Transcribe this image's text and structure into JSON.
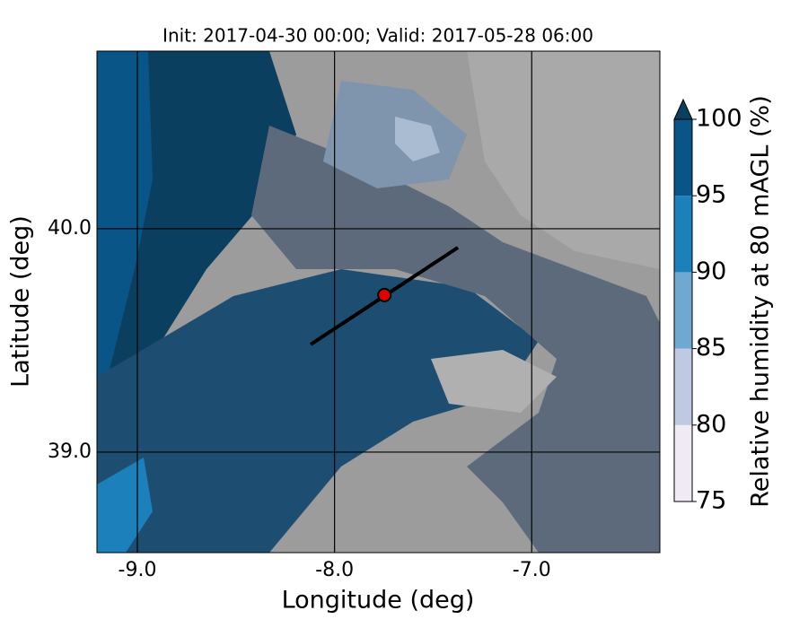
{
  "chart_data": {
    "type": "map",
    "title": "Init: 2017-04-30 00:00; Valid: 2017-05-28 06:00",
    "x_label": "Longitude (deg)",
    "y_label": "Latitude (deg)",
    "xlim": [
      -9.205,
      -6.35
    ],
    "ylim": [
      38.55,
      40.795
    ],
    "xticks": [
      {
        "value": -9,
        "label": "-9.0"
      },
      {
        "value": -8,
        "label": "-8.0"
      },
      {
        "value": -7,
        "label": "-7.0"
      }
    ],
    "yticks": [
      {
        "value": 39,
        "label": "39.0"
      },
      {
        "value": 40,
        "label": "40.0"
      }
    ],
    "grid": true,
    "colorbar": {
      "label": "Relative humidity at 80 mAGL (%)",
      "levels": [
        75,
        80,
        85,
        90,
        95,
        100
      ],
      "colors": [
        "#efeaf4",
        "#bfc9e2",
        "#6fa8d0",
        "#1c80bb",
        "#0a5587"
      ],
      "extend_color": "#0b3f60"
    },
    "section": {
      "lon": [
        -8.121,
        -7.374
      ],
      "lat": [
        39.482,
        39.916
      ],
      "color": "#000000"
    },
    "point": {
      "lon": -7.747,
      "lat": 39.703,
      "color": "#e00000"
    }
  }
}
